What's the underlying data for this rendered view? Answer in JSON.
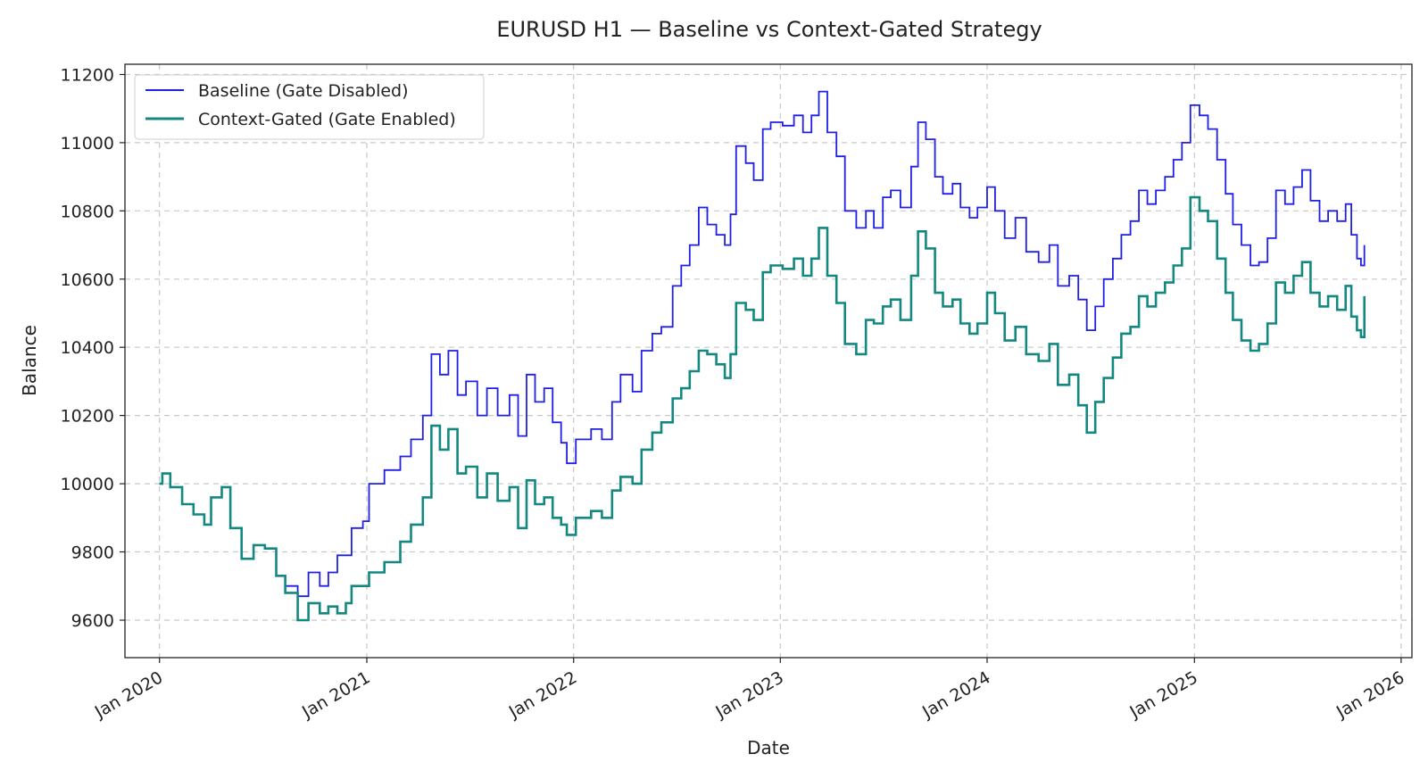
{
  "chart_data": {
    "type": "line",
    "title": "EURUSD H1 — Baseline vs Context-Gated Strategy",
    "xlabel": "Date",
    "ylabel": "Balance",
    "xlim": [
      "2019-11-01",
      "2026-01-20"
    ],
    "ylim": [
      9490,
      11230
    ],
    "yticks": [
      9600,
      9800,
      10000,
      10200,
      10400,
      10600,
      10800,
      11000,
      11200
    ],
    "xticks": [
      {
        "date": "2020-01-01",
        "label": "Jan 2020"
      },
      {
        "date": "2021-01-01",
        "label": "Jan 2021"
      },
      {
        "date": "2022-01-01",
        "label": "Jan 2022"
      },
      {
        "date": "2023-01-01",
        "label": "Jan 2023"
      },
      {
        "date": "2024-01-01",
        "label": "Jan 2024"
      },
      {
        "date": "2025-01-01",
        "label": "Jan 2025"
      },
      {
        "date": "2026-01-01",
        "label": "Jan 2026"
      }
    ],
    "grid": true,
    "legend_position": "top-left",
    "series": [
      {
        "name": "Baseline (Gate Disabled)",
        "color": "#1f1fe6",
        "points": [
          [
            "2020-01-01",
            10000
          ],
          [
            "2020-01-06",
            10030
          ],
          [
            "2020-01-20",
            9990
          ],
          [
            "2020-02-10",
            9940
          ],
          [
            "2020-03-01",
            9910
          ],
          [
            "2020-03-20",
            9880
          ],
          [
            "2020-04-01",
            9960
          ],
          [
            "2020-04-20",
            9990
          ],
          [
            "2020-05-05",
            9870
          ],
          [
            "2020-05-25",
            9780
          ],
          [
            "2020-06-15",
            9820
          ],
          [
            "2020-07-05",
            9810
          ],
          [
            "2020-07-25",
            9730
          ],
          [
            "2020-08-10",
            9700
          ],
          [
            "2020-09-01",
            9670
          ],
          [
            "2020-09-20",
            9740
          ],
          [
            "2020-10-10",
            9700
          ],
          [
            "2020-10-25",
            9740
          ],
          [
            "2020-11-10",
            9790
          ],
          [
            "2020-11-25",
            9790
          ],
          [
            "2020-12-05",
            9870
          ],
          [
            "2020-12-25",
            9890
          ],
          [
            "2021-01-05",
            10000
          ],
          [
            "2021-02-01",
            10040
          ],
          [
            "2021-03-01",
            10080
          ],
          [
            "2021-03-20",
            10130
          ],
          [
            "2021-04-10",
            10200
          ],
          [
            "2021-04-25",
            10380
          ],
          [
            "2021-05-10",
            10320
          ],
          [
            "2021-05-25",
            10390
          ],
          [
            "2021-06-10",
            10260
          ],
          [
            "2021-06-25",
            10300
          ],
          [
            "2021-07-15",
            10200
          ],
          [
            "2021-08-01",
            10280
          ],
          [
            "2021-08-20",
            10200
          ],
          [
            "2021-09-10",
            10260
          ],
          [
            "2021-09-25",
            10140
          ],
          [
            "2021-10-10",
            10320
          ],
          [
            "2021-10-25",
            10240
          ],
          [
            "2021-11-10",
            10280
          ],
          [
            "2021-11-25",
            10180
          ],
          [
            "2021-12-10",
            10120
          ],
          [
            "2021-12-20",
            10060
          ],
          [
            "2022-01-05",
            10130
          ],
          [
            "2022-02-01",
            10160
          ],
          [
            "2022-02-20",
            10130
          ],
          [
            "2022-03-10",
            10240
          ],
          [
            "2022-03-25",
            10320
          ],
          [
            "2022-04-15",
            10270
          ],
          [
            "2022-05-01",
            10390
          ],
          [
            "2022-05-20",
            10440
          ],
          [
            "2022-06-05",
            10460
          ],
          [
            "2022-06-25",
            10580
          ],
          [
            "2022-07-10",
            10640
          ],
          [
            "2022-07-25",
            10700
          ],
          [
            "2022-08-10",
            10810
          ],
          [
            "2022-08-25",
            10760
          ],
          [
            "2022-09-10",
            10730
          ],
          [
            "2022-09-25",
            10700
          ],
          [
            "2022-10-05",
            10790
          ],
          [
            "2022-10-15",
            10990
          ],
          [
            "2022-11-01",
            10940
          ],
          [
            "2022-11-15",
            10890
          ],
          [
            "2022-12-01",
            11040
          ],
          [
            "2022-12-15",
            11060
          ],
          [
            "2023-01-05",
            11050
          ],
          [
            "2023-01-25",
            11080
          ],
          [
            "2023-02-10",
            11030
          ],
          [
            "2023-02-25",
            11080
          ],
          [
            "2023-03-10",
            11150
          ],
          [
            "2023-03-25",
            11030
          ],
          [
            "2023-04-10",
            10960
          ],
          [
            "2023-04-25",
            10800
          ],
          [
            "2023-05-15",
            10750
          ],
          [
            "2023-06-01",
            10800
          ],
          [
            "2023-06-15",
            10750
          ],
          [
            "2023-07-01",
            10840
          ],
          [
            "2023-07-15",
            10860
          ],
          [
            "2023-08-01",
            10810
          ],
          [
            "2023-08-20",
            10930
          ],
          [
            "2023-09-01",
            11060
          ],
          [
            "2023-09-15",
            11010
          ],
          [
            "2023-10-01",
            10900
          ],
          [
            "2023-10-15",
            10850
          ],
          [
            "2023-11-01",
            10880
          ],
          [
            "2023-11-15",
            10810
          ],
          [
            "2023-12-01",
            10780
          ],
          [
            "2023-12-15",
            10810
          ],
          [
            "2024-01-01",
            10870
          ],
          [
            "2024-01-15",
            10800
          ],
          [
            "2024-02-01",
            10720
          ],
          [
            "2024-02-20",
            10780
          ],
          [
            "2024-03-10",
            10680
          ],
          [
            "2024-04-01",
            10650
          ],
          [
            "2024-04-20",
            10700
          ],
          [
            "2024-05-05",
            10580
          ],
          [
            "2024-05-25",
            10610
          ],
          [
            "2024-06-10",
            10540
          ],
          [
            "2024-06-25",
            10450
          ],
          [
            "2024-07-10",
            10520
          ],
          [
            "2024-07-25",
            10600
          ],
          [
            "2024-08-10",
            10660
          ],
          [
            "2024-08-25",
            10730
          ],
          [
            "2024-09-10",
            10770
          ],
          [
            "2024-09-25",
            10860
          ],
          [
            "2024-10-10",
            10820
          ],
          [
            "2024-10-25",
            10860
          ],
          [
            "2024-11-10",
            10900
          ],
          [
            "2024-11-25",
            10950
          ],
          [
            "2024-12-10",
            11000
          ],
          [
            "2024-12-25",
            11110
          ],
          [
            "2025-01-10",
            11080
          ],
          [
            "2025-01-25",
            11040
          ],
          [
            "2025-02-10",
            10950
          ],
          [
            "2025-02-25",
            10850
          ],
          [
            "2025-03-10",
            10760
          ],
          [
            "2025-03-25",
            10700
          ],
          [
            "2025-04-10",
            10640
          ],
          [
            "2025-04-25",
            10650
          ],
          [
            "2025-05-10",
            10720
          ],
          [
            "2025-05-25",
            10860
          ],
          [
            "2025-06-10",
            10820
          ],
          [
            "2025-06-25",
            10870
          ],
          [
            "2025-07-10",
            10920
          ],
          [
            "2025-07-25",
            10830
          ],
          [
            "2025-08-10",
            10770
          ],
          [
            "2025-08-25",
            10800
          ],
          [
            "2025-09-10",
            10770
          ],
          [
            "2025-09-25",
            10820
          ],
          [
            "2025-10-05",
            10730
          ],
          [
            "2025-10-15",
            10660
          ],
          [
            "2025-10-22",
            10640
          ],
          [
            "2025-10-28",
            10700
          ]
        ]
      },
      {
        "name": "Context-Gated (Gate Enabled)",
        "color": "#138880",
        "points": [
          [
            "2020-01-01",
            10000
          ],
          [
            "2020-01-06",
            10030
          ],
          [
            "2020-01-20",
            9990
          ],
          [
            "2020-02-10",
            9940
          ],
          [
            "2020-03-01",
            9910
          ],
          [
            "2020-03-20",
            9880
          ],
          [
            "2020-04-01",
            9960
          ],
          [
            "2020-04-20",
            9990
          ],
          [
            "2020-05-05",
            9870
          ],
          [
            "2020-05-25",
            9780
          ],
          [
            "2020-06-15",
            9820
          ],
          [
            "2020-07-05",
            9810
          ],
          [
            "2020-07-25",
            9730
          ],
          [
            "2020-08-10",
            9680
          ],
          [
            "2020-09-01",
            9600
          ],
          [
            "2020-09-20",
            9650
          ],
          [
            "2020-10-10",
            9620
          ],
          [
            "2020-10-25",
            9640
          ],
          [
            "2020-11-10",
            9620
          ],
          [
            "2020-11-25",
            9650
          ],
          [
            "2020-12-05",
            9700
          ],
          [
            "2020-12-25",
            9700
          ],
          [
            "2021-01-05",
            9740
          ],
          [
            "2021-02-01",
            9770
          ],
          [
            "2021-03-01",
            9830
          ],
          [
            "2021-03-20",
            9880
          ],
          [
            "2021-04-10",
            9960
          ],
          [
            "2021-04-25",
            10170
          ],
          [
            "2021-05-10",
            10100
          ],
          [
            "2021-05-25",
            10160
          ],
          [
            "2021-06-10",
            10030
          ],
          [
            "2021-06-25",
            10050
          ],
          [
            "2021-07-15",
            9960
          ],
          [
            "2021-08-01",
            10030
          ],
          [
            "2021-08-20",
            9950
          ],
          [
            "2021-09-10",
            9990
          ],
          [
            "2021-09-25",
            9870
          ],
          [
            "2021-10-10",
            10010
          ],
          [
            "2021-10-25",
            9940
          ],
          [
            "2021-11-10",
            9960
          ],
          [
            "2021-11-25",
            9900
          ],
          [
            "2021-12-10",
            9880
          ],
          [
            "2021-12-20",
            9850
          ],
          [
            "2022-01-05",
            9900
          ],
          [
            "2022-02-01",
            9920
          ],
          [
            "2022-02-20",
            9900
          ],
          [
            "2022-03-10",
            9980
          ],
          [
            "2022-03-25",
            10020
          ],
          [
            "2022-04-15",
            10000
          ],
          [
            "2022-05-01",
            10100
          ],
          [
            "2022-05-20",
            10150
          ],
          [
            "2022-06-05",
            10180
          ],
          [
            "2022-06-25",
            10250
          ],
          [
            "2022-07-10",
            10280
          ],
          [
            "2022-07-25",
            10330
          ],
          [
            "2022-08-10",
            10390
          ],
          [
            "2022-08-25",
            10380
          ],
          [
            "2022-09-10",
            10350
          ],
          [
            "2022-09-25",
            10310
          ],
          [
            "2022-10-05",
            10380
          ],
          [
            "2022-10-15",
            10530
          ],
          [
            "2022-11-01",
            10510
          ],
          [
            "2022-11-15",
            10480
          ],
          [
            "2022-12-01",
            10620
          ],
          [
            "2022-12-15",
            10640
          ],
          [
            "2023-01-05",
            10630
          ],
          [
            "2023-01-25",
            10660
          ],
          [
            "2023-02-10",
            10610
          ],
          [
            "2023-02-25",
            10660
          ],
          [
            "2023-03-10",
            10750
          ],
          [
            "2023-03-25",
            10610
          ],
          [
            "2023-04-10",
            10530
          ],
          [
            "2023-04-25",
            10410
          ],
          [
            "2023-05-15",
            10380
          ],
          [
            "2023-06-01",
            10480
          ],
          [
            "2023-06-15",
            10470
          ],
          [
            "2023-07-01",
            10520
          ],
          [
            "2023-07-15",
            10540
          ],
          [
            "2023-08-01",
            10480
          ],
          [
            "2023-08-20",
            10610
          ],
          [
            "2023-09-01",
            10740
          ],
          [
            "2023-09-15",
            10690
          ],
          [
            "2023-10-01",
            10560
          ],
          [
            "2023-10-15",
            10520
          ],
          [
            "2023-11-01",
            10540
          ],
          [
            "2023-11-15",
            10470
          ],
          [
            "2023-12-01",
            10440
          ],
          [
            "2023-12-15",
            10470
          ],
          [
            "2024-01-01",
            10560
          ],
          [
            "2024-01-15",
            10500
          ],
          [
            "2024-02-01",
            10420
          ],
          [
            "2024-02-20",
            10460
          ],
          [
            "2024-03-10",
            10380
          ],
          [
            "2024-04-01",
            10360
          ],
          [
            "2024-04-20",
            10410
          ],
          [
            "2024-05-05",
            10290
          ],
          [
            "2024-05-25",
            10320
          ],
          [
            "2024-06-10",
            10230
          ],
          [
            "2024-06-25",
            10150
          ],
          [
            "2024-07-10",
            10240
          ],
          [
            "2024-07-25",
            10310
          ],
          [
            "2024-08-10",
            10370
          ],
          [
            "2024-08-25",
            10440
          ],
          [
            "2024-09-10",
            10460
          ],
          [
            "2024-09-25",
            10550
          ],
          [
            "2024-10-10",
            10520
          ],
          [
            "2024-10-25",
            10560
          ],
          [
            "2024-11-10",
            10590
          ],
          [
            "2024-11-25",
            10640
          ],
          [
            "2024-12-10",
            10690
          ],
          [
            "2024-12-25",
            10840
          ],
          [
            "2025-01-10",
            10800
          ],
          [
            "2025-01-25",
            10770
          ],
          [
            "2025-02-10",
            10660
          ],
          [
            "2025-02-25",
            10560
          ],
          [
            "2025-03-10",
            10480
          ],
          [
            "2025-03-25",
            10420
          ],
          [
            "2025-04-10",
            10390
          ],
          [
            "2025-04-25",
            10410
          ],
          [
            "2025-05-10",
            10470
          ],
          [
            "2025-05-25",
            10590
          ],
          [
            "2025-06-10",
            10560
          ],
          [
            "2025-06-25",
            10610
          ],
          [
            "2025-07-10",
            10650
          ],
          [
            "2025-07-25",
            10560
          ],
          [
            "2025-08-10",
            10520
          ],
          [
            "2025-08-25",
            10550
          ],
          [
            "2025-09-10",
            10510
          ],
          [
            "2025-09-25",
            10580
          ],
          [
            "2025-10-05",
            10490
          ],
          [
            "2025-10-15",
            10450
          ],
          [
            "2025-10-22",
            10430
          ],
          [
            "2025-10-28",
            10550
          ]
        ]
      }
    ]
  }
}
